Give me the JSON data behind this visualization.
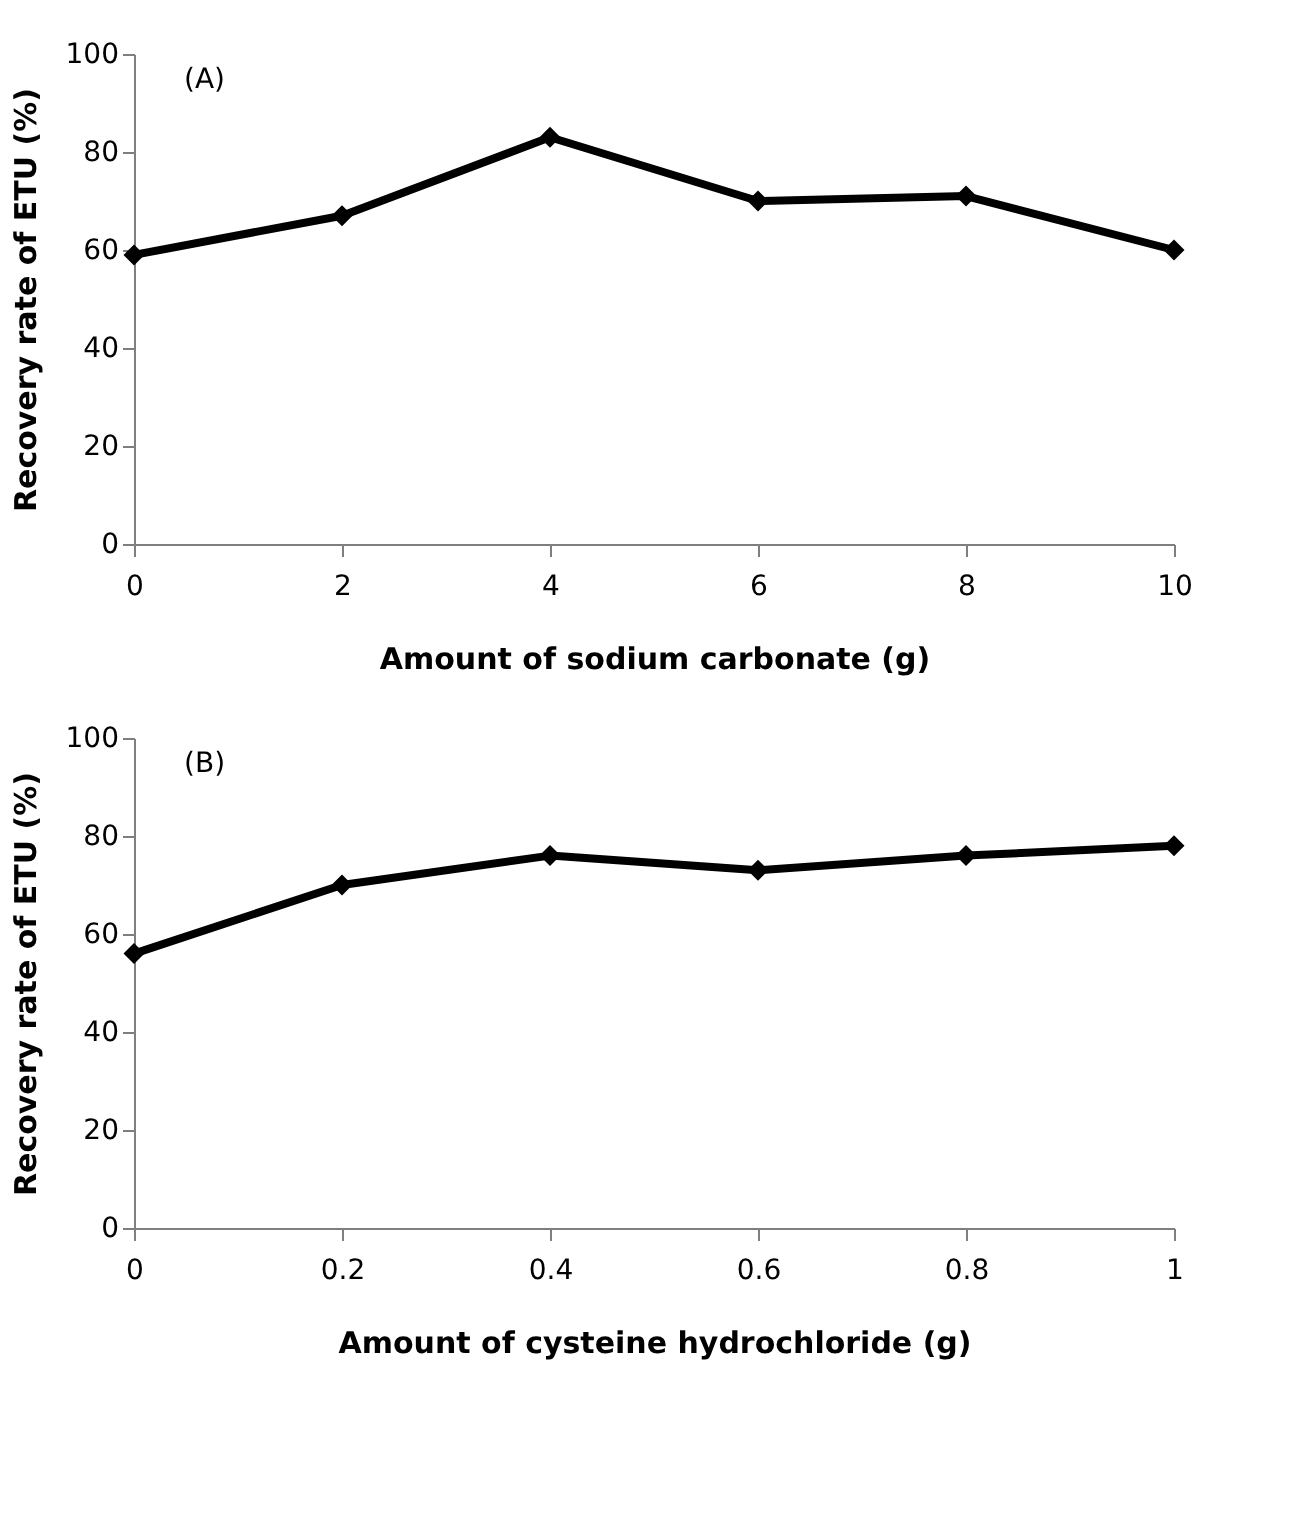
{
  "chart_data": [
    {
      "type": "line",
      "x": [
        0,
        2,
        4,
        6,
        8,
        10
      ],
      "series": [
        {
          "color": "#000000",
          "values": [
            59,
            67,
            83,
            70,
            71,
            60
          ]
        }
      ],
      "xlim": [
        0,
        10
      ],
      "xticks": [
        0,
        2,
        4,
        6,
        8,
        10
      ],
      "ylim": [
        0,
        100
      ],
      "yticks": [
        0,
        20,
        40,
        60,
        80,
        100
      ],
      "xlabel": "Amount of sodium carbonate (g)",
      "ylabel": "Recovery rate of ETU (%)",
      "annotations": [
        "(A)"
      ],
      "marker": "diamond",
      "line_style": "solid",
      "grid": false
    },
    {
      "type": "line",
      "x": [
        0,
        0.2,
        0.4,
        0.6,
        0.8,
        1
      ],
      "series": [
        {
          "color": "#000000",
          "values": [
            56,
            70,
            76,
            73,
            76,
            78
          ]
        }
      ],
      "xlim": [
        0,
        1
      ],
      "xticks": [
        0,
        0.2,
        0.4,
        0.6,
        0.8,
        1
      ],
      "ylim": [
        0,
        100
      ],
      "yticks": [
        0,
        20,
        40,
        60,
        80,
        100
      ],
      "xlabel": "Amount of cysteine hydrochloride (g)",
      "ylabel": "Recovery rate of ETU (%)",
      "annotations": [
        "(B)"
      ],
      "marker": "diamond",
      "line_style": "solid",
      "grid": false
    }
  ]
}
